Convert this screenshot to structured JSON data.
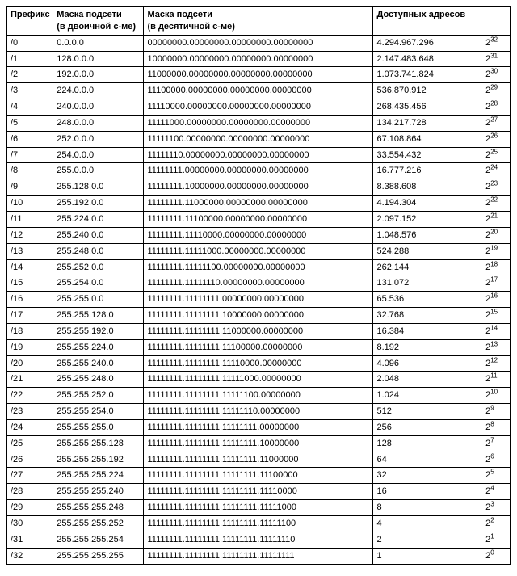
{
  "header": {
    "prefix_l1": "Префикс",
    "prefix_l2": "",
    "mask_dec_l1": "Маска подсети",
    "mask_dec_l2": "(в двоичной с-ме)",
    "mask_bin_l1": "Маска подсети",
    "mask_bin_l2": "(в десятичной с-ме)",
    "addr_l1": "Доступных адресов",
    "addr_l2": ""
  },
  "rows": [
    {
      "p": "/0",
      "dec": "0.0.0.0",
      "bin": "00000000.00000000.00000000.00000000",
      "cnt": "4.294.967.296",
      "exp": "32"
    },
    {
      "p": "/1",
      "dec": "128.0.0.0",
      "bin": "10000000.00000000.00000000.00000000",
      "cnt": "2.147.483.648",
      "exp": "31"
    },
    {
      "p": "/2",
      "dec": "192.0.0.0",
      "bin": "11000000.00000000.00000000.00000000",
      "cnt": "1.073.741.824",
      "exp": "30"
    },
    {
      "p": "/3",
      "dec": "224.0.0.0",
      "bin": "11100000.00000000.00000000.00000000",
      "cnt": "536.870.912",
      "exp": "29"
    },
    {
      "p": "/4",
      "dec": "240.0.0.0",
      "bin": "11110000.00000000.00000000.00000000",
      "cnt": "268.435.456",
      "exp": "28"
    },
    {
      "p": "/5",
      "dec": "248.0.0.0",
      "bin": "11111000.00000000.00000000.00000000",
      "cnt": "134.217.728",
      "exp": "27"
    },
    {
      "p": "/6",
      "dec": "252.0.0.0",
      "bin": "11111100.00000000.00000000.00000000",
      "cnt": "67.108.864",
      "exp": "26"
    },
    {
      "p": "/7",
      "dec": "254.0.0.0",
      "bin": "11111110.00000000.00000000.00000000",
      "cnt": "33.554.432",
      "exp": "25"
    },
    {
      "p": "/8",
      "dec": "255.0.0.0",
      "bin": "11111111.00000000.00000000.00000000",
      "cnt": "16.777.216",
      "exp": "24"
    },
    {
      "p": "/9",
      "dec": "255.128.0.0",
      "bin": "11111111.10000000.00000000.00000000",
      "cnt": "8.388.608",
      "exp": "23"
    },
    {
      "p": "/10",
      "dec": "255.192.0.0",
      "bin": "11111111.11000000.00000000.00000000",
      "cnt": "4.194.304",
      "exp": "22"
    },
    {
      "p": "/11",
      "dec": "255.224.0.0",
      "bin": "11111111.11100000.00000000.00000000",
      "cnt": "2.097.152",
      "exp": "21"
    },
    {
      "p": "/12",
      "dec": "255.240.0.0",
      "bin": "11111111.11110000.00000000.00000000",
      "cnt": "1.048.576",
      "exp": "20"
    },
    {
      "p": "/13",
      "dec": "255.248.0.0",
      "bin": "11111111.11111000.00000000.00000000",
      "cnt": "524.288",
      "exp": "19"
    },
    {
      "p": "/14",
      "dec": "255.252.0.0",
      "bin": "11111111.11111100.00000000.00000000",
      "cnt": "262.144",
      "exp": "18"
    },
    {
      "p": "/15",
      "dec": "255.254.0.0",
      "bin": "11111111.11111110.00000000.00000000",
      "cnt": "131.072",
      "exp": "17"
    },
    {
      "p": "/16",
      "dec": "255.255.0.0",
      "bin": "11111111.11111111.00000000.00000000",
      "cnt": "65.536",
      "exp": "16"
    },
    {
      "p": "/17",
      "dec": "255.255.128.0",
      "bin": "11111111.11111111.10000000.00000000",
      "cnt": "32.768",
      "exp": "15"
    },
    {
      "p": "/18",
      "dec": "255.255.192.0",
      "bin": "11111111.11111111.11000000.00000000",
      "cnt": "16.384",
      "exp": "14"
    },
    {
      "p": "/19",
      "dec": "255.255.224.0",
      "bin": "11111111.11111111.11100000.00000000",
      "cnt": "8.192",
      "exp": "13"
    },
    {
      "p": "/20",
      "dec": "255.255.240.0",
      "bin": "11111111.11111111.11110000.00000000",
      "cnt": "4.096",
      "exp": "12"
    },
    {
      "p": "/21",
      "dec": "255.255.248.0",
      "bin": "11111111.11111111.11111000.00000000",
      "cnt": "2.048",
      "exp": "11"
    },
    {
      "p": "/22",
      "dec": "255.255.252.0",
      "bin": "11111111.11111111.11111100.00000000",
      "cnt": "1.024",
      "exp": "10"
    },
    {
      "p": "/23",
      "dec": "255.255.254.0",
      "bin": "11111111.11111111.11111110.00000000",
      "cnt": "512",
      "exp": "9"
    },
    {
      "p": "/24",
      "dec": "255.255.255.0",
      "bin": "11111111.11111111.11111111.00000000",
      "cnt": "256",
      "exp": "8"
    },
    {
      "p": "/25",
      "dec": "255.255.255.128",
      "bin": "11111111.11111111.11111111.10000000",
      "cnt": "128",
      "exp": "7"
    },
    {
      "p": "/26",
      "dec": "255.255.255.192",
      "bin": "11111111.11111111.11111111.11000000",
      "cnt": "64",
      "exp": "6"
    },
    {
      "p": "/27",
      "dec": "255.255.255.224",
      "bin": "11111111.11111111.11111111.11100000",
      "cnt": "32",
      "exp": "5"
    },
    {
      "p": "/28",
      "dec": "255.255.255.240",
      "bin": "11111111.11111111.11111111.11110000",
      "cnt": "16",
      "exp": "4"
    },
    {
      "p": "/29",
      "dec": "255.255.255.248",
      "bin": "11111111.11111111.11111111.11111000",
      "cnt": "8",
      "exp": "3"
    },
    {
      "p": "/30",
      "dec": "255.255.255.252",
      "bin": "11111111.11111111.11111111.11111100",
      "cnt": "4",
      "exp": "2"
    },
    {
      "p": "/31",
      "dec": "255.255.255.254",
      "bin": "11111111.11111111.11111111.11111110",
      "cnt": "2",
      "exp": "1"
    },
    {
      "p": "/32",
      "dec": "255.255.255.255",
      "bin": "11111111.11111111.11111111.11111111",
      "cnt": "1",
      "exp": "0"
    }
  ]
}
